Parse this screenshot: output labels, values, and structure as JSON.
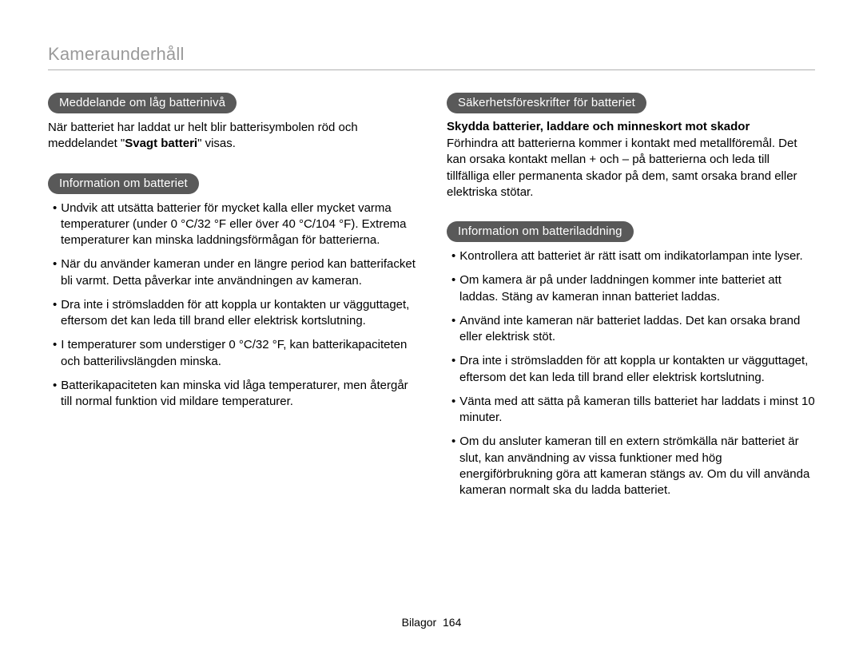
{
  "page": {
    "title": "Kameraunderhåll",
    "footer_label": "Bilagor",
    "page_number": "164"
  },
  "left": {
    "section1": {
      "heading": "Meddelande om låg batterinivå",
      "para_before": "När batteriet har laddat ur helt blir batterisymbolen röd och meddelandet \"",
      "para_bold": "Svagt batteri",
      "para_after": "\" visas."
    },
    "section2": {
      "heading": "Information om batteriet",
      "items": [
        "Undvik att utsätta batterier för mycket kalla eller mycket varma temperaturer (under 0 °C/32 °F eller över 40 °C/104 °F). Extrema temperaturer kan minska laddningsförmågan för batterierna.",
        "När du använder kameran under en längre period kan batterifacket bli varmt. Detta påverkar inte användningen av kameran.",
        "Dra inte i strömsladden för att koppla ur kontakten ur vägguttaget, eftersom det kan leda till brand eller elektrisk kortslutning.",
        "I temperaturer som understiger 0 °C/32 °F, kan batterikapaciteten och batterilivslängden minska.",
        "Batterikapaciteten kan minska vid låga temperaturer, men återgår till normal funktion vid mildare temperaturer."
      ]
    }
  },
  "right": {
    "section1": {
      "heading": "Säkerhetsföreskrifter för batteriet",
      "subheading": "Skydda batterier, laddare och minneskort mot skador",
      "para": "Förhindra att batterierna kommer i kontakt med metallföremål. Det kan orsaka kontakt mellan + och – på batterierna och leda till tillfälliga eller permanenta skador på dem, samt orsaka brand eller elektriska stötar."
    },
    "section2": {
      "heading": "Information om batteriladdning",
      "items": [
        "Kontrollera att batteriet är rätt isatt om indikatorlampan inte lyser.",
        "Om kamera är på under laddningen kommer inte batteriet att laddas. Stäng av kameran innan batteriet laddas.",
        "Använd inte kameran när batteriet laddas. Det kan orsaka brand eller elektrisk stöt.",
        "Dra inte i strömsladden för att koppla ur kontakten ur vägguttaget, eftersom det kan leda till brand eller elektrisk kortslutning.",
        "Vänta med att sätta på kameran tills batteriet har laddats i minst 10 minuter.",
        "Om du ansluter kameran till en extern strömkälla när batteriet är slut, kan användning av vissa funktioner med hög energiförbrukning göra att kameran stängs av. Om du vill använda kameran normalt ska du ladda batteriet."
      ]
    }
  }
}
